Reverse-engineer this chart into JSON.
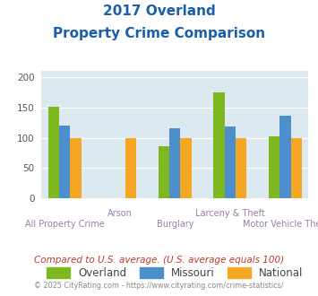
{
  "title_line1": "2017 Overland",
  "title_line2": "Property Crime Comparison",
  "categories": [
    "All Property Crime",
    "Arson",
    "Burglary",
    "Larceny & Theft",
    "Motor Vehicle Theft"
  ],
  "series": {
    "Overland": [
      151,
      null,
      86,
      175,
      102
    ],
    "Missouri": [
      120,
      null,
      115,
      119,
      136
    ],
    "National": [
      100,
      100,
      100,
      100,
      100
    ]
  },
  "colors": {
    "Overland": "#7db821",
    "Missouri": "#4d8fcc",
    "National": "#f5a623"
  },
  "ylim": [
    0,
    210
  ],
  "yticks": [
    0,
    50,
    100,
    150,
    200
  ],
  "footnote": "Compared to U.S. average. (U.S. average equals 100)",
  "copyright": "© 2025 CityRating.com - https://www.cityrating.com/crime-statistics/",
  "bg_color": "#dde9f0",
  "title_color": "#1a5fa8",
  "footnote_color": "#c0392b",
  "copyright_color": "#888888",
  "xlabel_color": "#9b7fa8"
}
